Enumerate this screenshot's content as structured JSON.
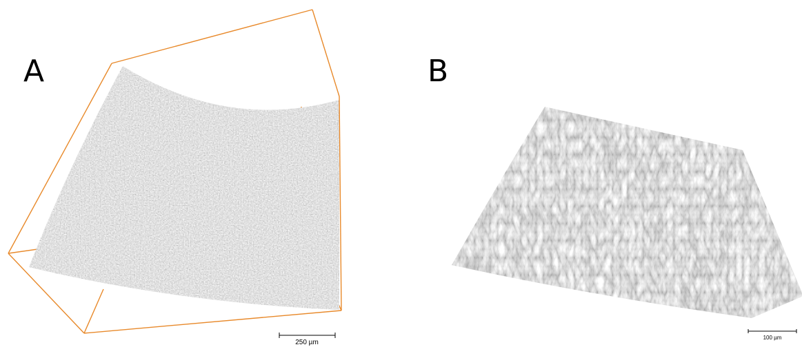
{
  "panels": [
    {
      "label": "A",
      "scale_bar": "250 µm"
    },
    {
      "label": "B",
      "scale_bar": "100 µm"
    }
  ]
}
